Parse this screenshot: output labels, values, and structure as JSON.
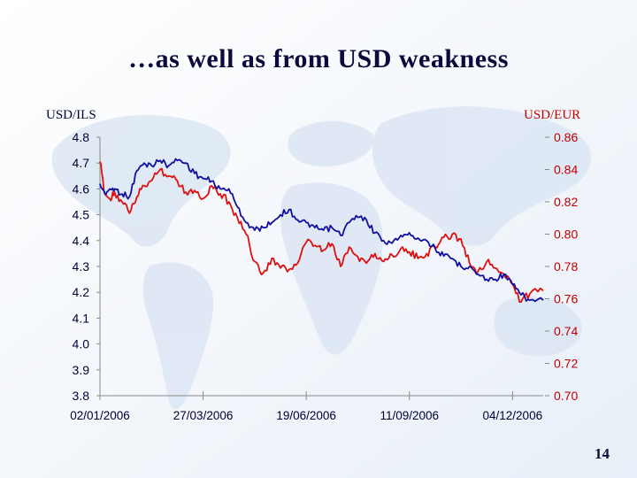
{
  "slide": {
    "title": "…as well as from USD weakness",
    "page_number": "14"
  },
  "chart_data": {
    "type": "line",
    "title": "…as well as from USD weakness",
    "left_axis_title": "USD/ILS",
    "right_axis_title": "USD/EUR",
    "x_tick_labels": [
      "02/01/2006",
      "27/03/2006",
      "19/06/2006",
      "11/09/2006",
      "04/12/2006"
    ],
    "x_tick_dates": [
      "2006-01-02",
      "2006-03-27",
      "2006-06-19",
      "2006-09-11",
      "2006-12-04"
    ],
    "x_range": [
      "2006-01-02",
      "2006-12-29"
    ],
    "y_left": {
      "min": 3.8,
      "max": 4.8,
      "ticks": [
        "4.8",
        "4.7",
        "4.6",
        "4.5",
        "4.4",
        "4.3",
        "4.2",
        "4.1",
        "4.0",
        "3.9",
        "3.8"
      ]
    },
    "y_right": {
      "min": 0.7,
      "max": 0.86,
      "ticks": [
        "0.86",
        "0.84",
        "0.82",
        "0.80",
        "0.78",
        "0.76",
        "0.74",
        "0.72",
        "0.70"
      ]
    },
    "grid": false,
    "colors": {
      "usd_ils": "#1010a0",
      "usd_eur": "#e01010",
      "axis": "#888888",
      "right_ticks": "#c00000",
      "left_ticks": "#000033"
    },
    "series": [
      {
        "axis": "left",
        "x": [
          "2006-01-02",
          "2006-01-06",
          "2006-01-10",
          "2006-01-14",
          "2006-01-20",
          "2006-01-26",
          "2006-02-01",
          "2006-02-07",
          "2006-02-13",
          "2006-02-20",
          "2006-02-27",
          "2006-03-06",
          "2006-03-13",
          "2006-03-20",
          "2006-03-27",
          "2006-04-03",
          "2006-04-10",
          "2006-04-17",
          "2006-04-24",
          "2006-05-01",
          "2006-05-08",
          "2006-05-15",
          "2006-05-22",
          "2006-05-29",
          "2006-06-05",
          "2006-06-12",
          "2006-06-19",
          "2006-06-26",
          "2006-07-03",
          "2006-07-10",
          "2006-07-17",
          "2006-07-24",
          "2006-07-31",
          "2006-08-07",
          "2006-08-14",
          "2006-08-21",
          "2006-08-28",
          "2006-09-04",
          "2006-09-11",
          "2006-09-18",
          "2006-09-25",
          "2006-10-02",
          "2006-10-09",
          "2006-10-16",
          "2006-10-23",
          "2006-10-30",
          "2006-11-06",
          "2006-11-13",
          "2006-11-20",
          "2006-11-27",
          "2006-12-04",
          "2006-12-11",
          "2006-12-18",
          "2006-12-29"
        ],
        "y": [
          4.62,
          4.58,
          4.6,
          4.6,
          4.58,
          4.57,
          4.67,
          4.7,
          4.69,
          4.71,
          4.69,
          4.71,
          4.7,
          4.66,
          4.64,
          4.63,
          4.6,
          4.6,
          4.53,
          4.47,
          4.44,
          4.45,
          4.47,
          4.5,
          4.52,
          4.48,
          4.47,
          4.45,
          4.44,
          4.45,
          4.42,
          4.47,
          4.49,
          4.48,
          4.43,
          4.4,
          4.39,
          4.42,
          4.43,
          4.41,
          4.4,
          4.37,
          4.34,
          4.33,
          4.3,
          4.3,
          4.27,
          4.25,
          4.25,
          4.27,
          4.23,
          4.19,
          4.17,
          4.17
        ]
      },
      {
        "axis": "right",
        "x": [
          "2006-01-02",
          "2006-01-06",
          "2006-01-10",
          "2006-01-14",
          "2006-01-20",
          "2006-01-26",
          "2006-02-01",
          "2006-02-07",
          "2006-02-13",
          "2006-02-20",
          "2006-02-27",
          "2006-03-06",
          "2006-03-13",
          "2006-03-20",
          "2006-03-27",
          "2006-04-03",
          "2006-04-10",
          "2006-04-17",
          "2006-04-24",
          "2006-05-01",
          "2006-05-08",
          "2006-05-15",
          "2006-05-22",
          "2006-05-29",
          "2006-06-05",
          "2006-06-12",
          "2006-06-19",
          "2006-06-26",
          "2006-07-03",
          "2006-07-10",
          "2006-07-17",
          "2006-07-24",
          "2006-07-31",
          "2006-08-07",
          "2006-08-14",
          "2006-08-21",
          "2006-08-28",
          "2006-09-04",
          "2006-09-11",
          "2006-09-18",
          "2006-09-25",
          "2006-10-02",
          "2006-10-09",
          "2006-10-16",
          "2006-10-23",
          "2006-10-30",
          "2006-11-06",
          "2006-11-13",
          "2006-11-20",
          "2006-11-27",
          "2006-12-04",
          "2006-12-11",
          "2006-12-18",
          "2006-12-29"
        ],
        "y": [
          0.845,
          0.825,
          0.822,
          0.826,
          0.82,
          0.813,
          0.823,
          0.83,
          0.833,
          0.84,
          0.836,
          0.833,
          0.826,
          0.827,
          0.822,
          0.83,
          0.825,
          0.82,
          0.81,
          0.8,
          0.783,
          0.776,
          0.785,
          0.779,
          0.778,
          0.782,
          0.795,
          0.793,
          0.79,
          0.794,
          0.78,
          0.792,
          0.786,
          0.782,
          0.788,
          0.783,
          0.787,
          0.791,
          0.789,
          0.785,
          0.788,
          0.792,
          0.798,
          0.8,
          0.797,
          0.782,
          0.777,
          0.783,
          0.779,
          0.775,
          0.769,
          0.758,
          0.763,
          0.765
        ]
      }
    ]
  }
}
